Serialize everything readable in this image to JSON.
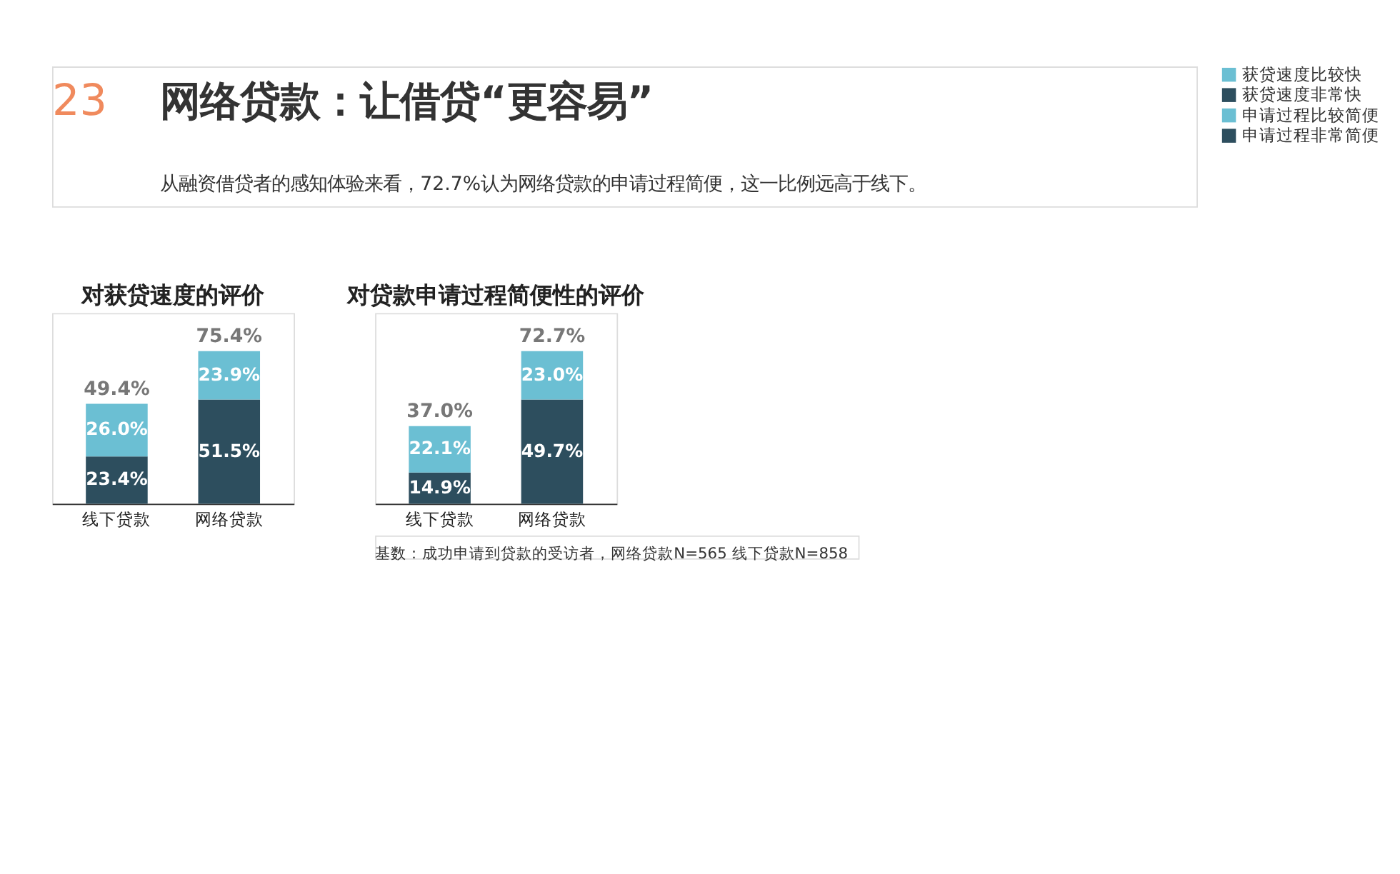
{
  "chart_data": [
    {
      "type": "bar",
      "stacked": true,
      "title": "对获贷速度的评价",
      "categories": [
        "线下贷款",
        "网络贷款"
      ],
      "series": [
        {
          "name": "获贷速度非常快",
          "color": "#2d4e5e",
          "values": [
            23.4,
            51.5
          ],
          "value_labels": [
            "23.4%",
            "51.5%"
          ]
        },
        {
          "name": "获贷速度比较快",
          "color": "#6bbfd3",
          "values": [
            26.0,
            23.9
          ],
          "value_labels": [
            "26.0%",
            "23.9%"
          ]
        }
      ],
      "totals": [
        "49.4%",
        "75.4%"
      ],
      "legend": "right",
      "grid": false,
      "annotations": [
        "23",
        "网络贷款：让借贷“更容易”",
        "从融资借贷者的感知体验来看，72.7%认为网络贷款的申请过程简便，这一比例远高于线下。"
      ]
    },
    {
      "type": "bar",
      "stacked": true,
      "title": "对贷款申请过程简便性的评价",
      "categories": [
        "线下贷款",
        "网络贷款"
      ],
      "series": [
        {
          "name": "申请过程非常简便",
          "color": "#2d4e5e",
          "values": [
            14.9,
            49.7
          ],
          "value_labels": [
            "14.9%",
            "49.7%"
          ]
        },
        {
          "name": "申请过程比较简便",
          "color": "#6bbfd3",
          "values": [
            22.1,
            23.0
          ],
          "value_labels": [
            "22.1%",
            "23.0%"
          ]
        }
      ],
      "totals": [
        "37.0%",
        "72.7%"
      ],
      "legend": "right",
      "grid": false,
      "annotations": [
        "基数：成功申请到贷款的受访者，网络贷款N=565 线下贷款N=858"
      ]
    }
  ]
}
